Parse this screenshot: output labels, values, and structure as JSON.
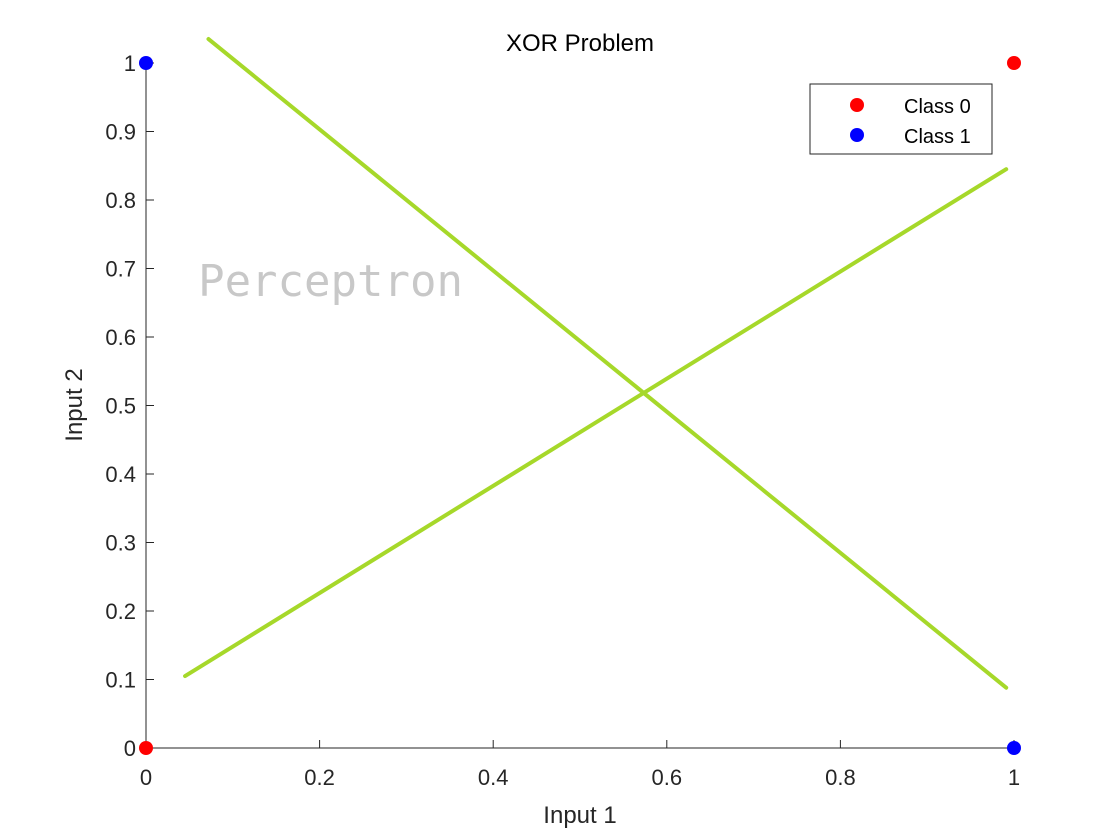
{
  "chart_data": {
    "type": "scatter",
    "title": "XOR Problem",
    "xlabel": "Input 1",
    "ylabel": "Input 2",
    "xlim": [
      0,
      1
    ],
    "ylim": [
      0,
      1
    ],
    "xticks": [
      "0",
      "0.2",
      "0.4",
      "0.6",
      "0.8",
      "1"
    ],
    "xtick_values": [
      0,
      0.2,
      0.4,
      0.6,
      0.8,
      1
    ],
    "yticks": [
      "0",
      "0.1",
      "0.2",
      "0.3",
      "0.4",
      "0.5",
      "0.6",
      "0.7",
      "0.8",
      "0.9",
      "1"
    ],
    "ytick_values": [
      0,
      0.1,
      0.2,
      0.3,
      0.4,
      0.5,
      0.6,
      0.7,
      0.8,
      0.9,
      1
    ],
    "grid": false,
    "legend_position": "top-right",
    "series": [
      {
        "name": "Class 0",
        "color": "#ff0000",
        "points": [
          [
            0,
            0
          ],
          [
            1,
            1
          ]
        ]
      },
      {
        "name": "Class 1",
        "color": "#0000ff",
        "points": [
          [
            0,
            1
          ],
          [
            1,
            0
          ]
        ]
      }
    ],
    "lines": [
      {
        "color": "#a6d82a",
        "points": [
          [
            0.072,
            1.035
          ],
          [
            0.991,
            0.088
          ]
        ]
      },
      {
        "color": "#a6d82a",
        "points": [
          [
            0.045,
            0.105
          ],
          [
            0.991,
            0.845
          ]
        ]
      }
    ],
    "annotations": [
      {
        "text": "Perceptron",
        "at": [
          0.06,
          0.66
        ]
      }
    ]
  }
}
